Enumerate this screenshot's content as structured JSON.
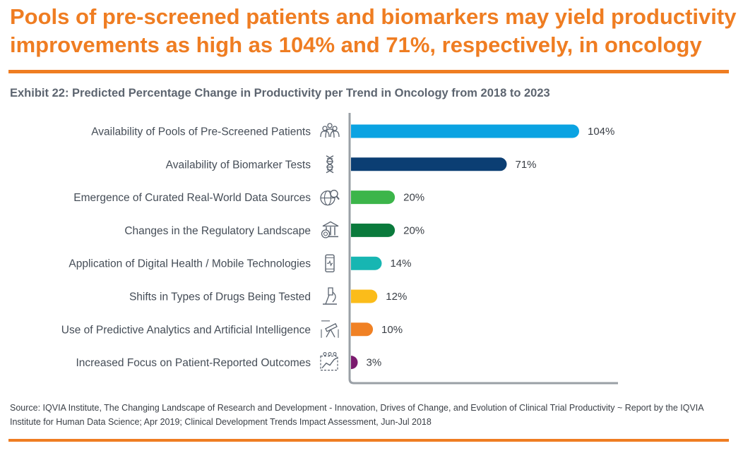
{
  "headline": "Pools of pre-screened patients and biomarkers may yield productivity improvements as high as 104% and 71%, respectively, in oncology",
  "colors": {
    "accent": "#ef7d22",
    "axis": "#9aa0a6",
    "icon": "#5b6470"
  },
  "chart_data": {
    "type": "bar",
    "orientation": "horizontal",
    "title": "Exhibit 22: Predicted Percentage Change in Productivity per Trend in Oncology from 2018 to 2023",
    "xlabel": "",
    "ylabel": "",
    "grid": false,
    "xlim": [
      0,
      130
    ],
    "unit": "%",
    "categories": [
      "Availability of Pools of Pre-Screened Patients",
      "Availability of Biomarker Tests",
      "Emergence of Curated Real-World Data Sources",
      "Changes in the Regulatory Landscape",
      "Application of Digital Health / Mobile Technologies",
      "Shifts in Types of Drugs Being Tested",
      "Use of Predictive Analytics and Artificial Intelligence",
      "Increased Focus on Patient-Reported Outcomes"
    ],
    "values": [
      104,
      71,
      20,
      20,
      14,
      12,
      10,
      3
    ],
    "value_labels": [
      "104%",
      "71%",
      "20%",
      "20%",
      "14%",
      "12%",
      "10%",
      "3%"
    ],
    "bar_colors": [
      "#0aa3e2",
      "#0b3e73",
      "#3cb54a",
      "#0a7a3c",
      "#17b6b2",
      "#fbbc1a",
      "#f08124",
      "#7b1a6e"
    ],
    "icons": [
      "patients-icon",
      "dna-icon",
      "globe-search-icon",
      "regulatory-building-icon",
      "mobile-health-icon",
      "microscope-icon",
      "telescope-icon",
      "outcomes-chart-icon"
    ]
  },
  "source": "Source: IQVIA Institute, The Changing Landscape of Research and Development - Innovation, Drives of Change, and Evolution of Clinical Trial Productivity ~ Report by the IQVIA Institute for Human Data Science; Apr 2019; Clinical Development Trends Impact Assessment, Jun-Jul 2018"
}
